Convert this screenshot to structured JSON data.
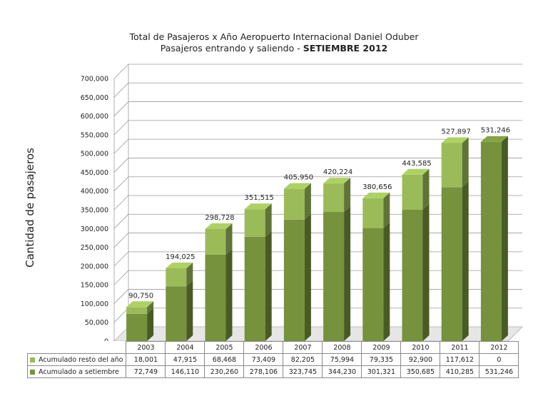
{
  "title": {
    "line1": "Total de Pasajeros x Año Aeropuerto Internacional Daniel Oduber",
    "line2_prefix": "Pasajeros entrando y saliendo - ",
    "line2_bold": "SETIEMBRE 2012"
  },
  "chart_data": {
    "type": "bar",
    "stacked": true,
    "categories": [
      "2003",
      "2004",
      "2005",
      "2006",
      "2007",
      "2008",
      "2009",
      "2010",
      "2011",
      "2012"
    ],
    "series": [
      {
        "name": "Acumulado a setiembre",
        "color": "#76923c",
        "values": [
          72749,
          146110,
          230260,
          278106,
          323745,
          344230,
          301321,
          350685,
          410285,
          531246
        ]
      },
      {
        "name": "Acumulado resto del año",
        "color": "#9bbb59",
        "values": [
          18001,
          47915,
          68468,
          73409,
          82205,
          75994,
          79335,
          92900,
          117612,
          0
        ]
      }
    ],
    "totals": [
      90750,
      194025,
      298728,
      351515,
      405950,
      420224,
      380656,
      443585,
      527897,
      531246
    ],
    "total_labels": [
      "90,750",
      "194,025",
      "298,728",
      "351,515",
      "405,950",
      "420,224",
      "380,656",
      "443,585",
      "527,897",
      "531,246"
    ],
    "ylabel": "Cantidad de pasajeros",
    "ylim": [
      0,
      700000
    ],
    "yticks": [
      0,
      50000,
      100000,
      150000,
      200000,
      250000,
      300000,
      350000,
      400000,
      450000,
      500000,
      550000,
      600000,
      650000,
      700000
    ],
    "grid": true,
    "legend": "data table below chart",
    "table": {
      "rows": [
        {
          "label": "Acumulado resto del año",
          "color": "#9bbb59",
          "cells": [
            "18,001",
            "47,915",
            "68,468",
            "73,409",
            "82,205",
            "75,994",
            "79,335",
            "92,900",
            "117,612",
            "0"
          ]
        },
        {
          "label": "Acumulado a setiembre",
          "color": "#76923c",
          "cells": [
            "72,749",
            "146,110",
            "230,260",
            "278,106",
            "323,745",
            "344,230",
            "301,321",
            "350,685",
            "410,285",
            "531,246"
          ]
        }
      ]
    }
  }
}
